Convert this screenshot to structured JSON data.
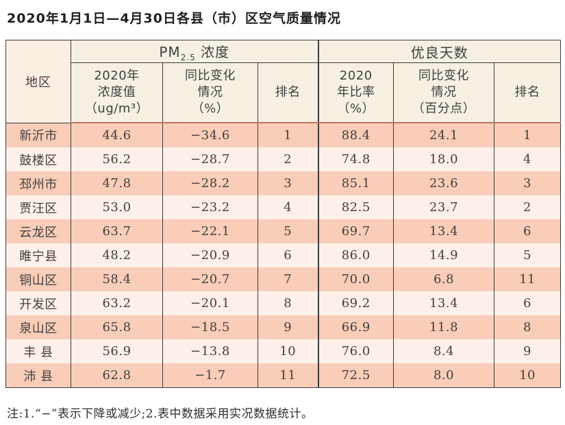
{
  "title": "2020年1月1日—4月30日各县（市）区空气质量情况",
  "note": "注:1.“−”表示下降或减少;2.表中数据采用实况数据统计。",
  "colors": {
    "row_odd": "#f9cdb8",
    "row_even": "#fdf0ea",
    "header_bg": "#f5f0e2",
    "region_header_bg": "#fbeee3",
    "header_divider": "#c4705a",
    "border": "#3a3a3a"
  },
  "table": {
    "header": {
      "region": "地区",
      "pm_group": {
        "prefix": "PM",
        "sub": "2.5",
        "suffix": " 浓度"
      },
      "good_group": "优良天数",
      "sub": [
        "2020年\n浓度值\n（ug/m³）",
        "同比变化\n情况\n（%）",
        "排名",
        "2020\n年比率\n（%）",
        "同比变化\n情况\n（百分点）",
        "排名"
      ]
    },
    "rows": [
      [
        "新沂市",
        "44.6",
        "−34.6",
        "1",
        "88.4",
        "24.1",
        "1"
      ],
      [
        "鼓楼区",
        "56.2",
        "−28.7",
        "2",
        "74.8",
        "18.0",
        "4"
      ],
      [
        "邳州市",
        "47.8",
        "−28.2",
        "3",
        "85.1",
        "23.6",
        "3"
      ],
      [
        "贾汪区",
        "53.0",
        "−23.2",
        "4",
        "82.5",
        "23.7",
        "2"
      ],
      [
        "云龙区",
        "63.7",
        "−22.1",
        "5",
        "69.7",
        "13.4",
        "6"
      ],
      [
        "睢宁县",
        "48.2",
        "−20.9",
        "6",
        "86.0",
        "14.9",
        "5"
      ],
      [
        "铜山区",
        "58.4",
        "−20.7",
        "7",
        "70.0",
        "6.8",
        "11"
      ],
      [
        "开发区",
        "63.2",
        "−20.1",
        "8",
        "69.2",
        "13.4",
        "6"
      ],
      [
        "泉山区",
        "65.8",
        "−18.5",
        "9",
        "66.9",
        "11.8",
        "8"
      ],
      [
        "丰 县",
        "56.9",
        "−13.8",
        "10",
        "76.0",
        "8.4",
        "9"
      ],
      [
        "沛 县",
        "62.8",
        "−1.7",
        "11",
        "72.5",
        "8.0",
        "10"
      ]
    ]
  },
  "chart_data": {
    "type": "table",
    "title": "2020年1月1日—4月30日各县（市）区空气质量情况",
    "column_groups": [
      "地区",
      "PM2.5浓度",
      "优良天数"
    ],
    "columns": [
      "地区",
      "PM2.5浓度 2020年浓度值（ug/m³）",
      "PM2.5浓度 同比变化情况（%）",
      "PM2.5浓度 排名",
      "优良天数 2020年比率（%）",
      "优良天数 同比变化情况（百分点）",
      "优良天数 排名"
    ],
    "rows": [
      [
        "新沂市",
        44.6,
        -34.6,
        1,
        88.4,
        24.1,
        1
      ],
      [
        "鼓楼区",
        56.2,
        -28.7,
        2,
        74.8,
        18.0,
        4
      ],
      [
        "邳州市",
        47.8,
        -28.2,
        3,
        85.1,
        23.6,
        3
      ],
      [
        "贾汪区",
        53.0,
        -23.2,
        4,
        82.5,
        23.7,
        2
      ],
      [
        "云龙区",
        63.7,
        -22.1,
        5,
        69.7,
        13.4,
        6
      ],
      [
        "睢宁县",
        48.2,
        -20.9,
        6,
        86.0,
        14.9,
        5
      ],
      [
        "铜山区",
        58.4,
        -20.7,
        7,
        70.0,
        6.8,
        11
      ],
      [
        "开发区",
        63.2,
        -20.1,
        8,
        69.2,
        13.4,
        6
      ],
      [
        "泉山区",
        65.8,
        -18.5,
        9,
        66.9,
        11.8,
        8
      ],
      [
        "丰县",
        56.9,
        -13.8,
        10,
        76.0,
        8.4,
        9
      ],
      [
        "沛县",
        62.8,
        -1.7,
        11,
        72.5,
        8.0,
        10
      ]
    ],
    "footnote": "注:1.“−”表示下降或减少;2.表中数据采用实况数据统计。"
  }
}
